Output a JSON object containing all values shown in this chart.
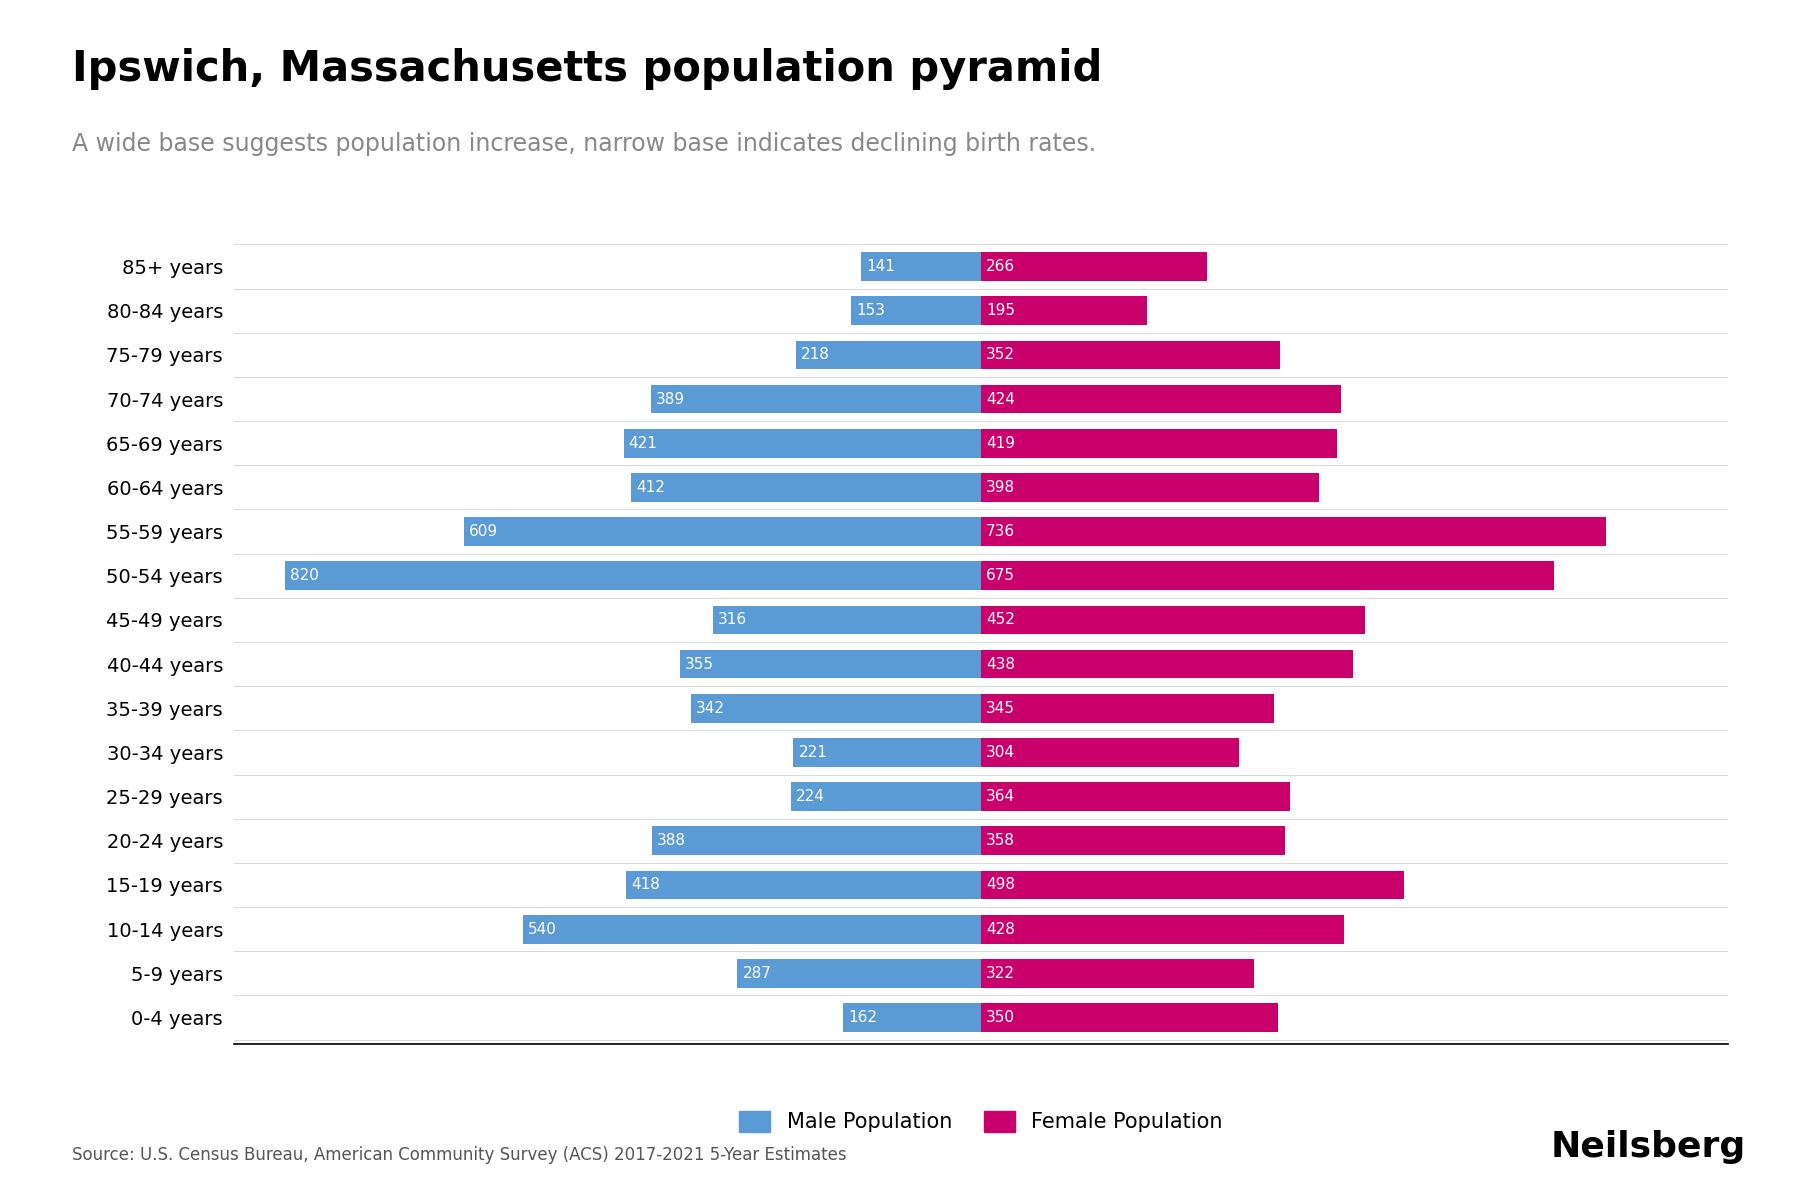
{
  "title": "Ipswich, Massachusetts population pyramid",
  "subtitle": "A wide base suggests population increase, narrow base indicates declining birth rates.",
  "source": "Source: U.S. Census Bureau, American Community Survey (ACS) 2017-2021 5-Year Estimates",
  "watermark": "Neilsberg",
  "age_groups": [
    "85+ years",
    "80-84 years",
    "75-79 years",
    "70-74 years",
    "65-69 years",
    "60-64 years",
    "55-59 years",
    "50-54 years",
    "45-49 years",
    "40-44 years",
    "35-39 years",
    "30-34 years",
    "25-29 years",
    "20-24 years",
    "15-19 years",
    "10-14 years",
    "5-9 years",
    "0-4 years"
  ],
  "male": [
    141,
    153,
    218,
    389,
    421,
    412,
    609,
    820,
    316,
    355,
    342,
    221,
    224,
    388,
    418,
    540,
    287,
    162
  ],
  "female": [
    266,
    195,
    352,
    424,
    419,
    398,
    736,
    675,
    452,
    438,
    345,
    304,
    364,
    358,
    498,
    428,
    322,
    350
  ],
  "male_color": "#5B9BD5",
  "female_color": "#C9006B",
  "background_color": "#FFFFFF",
  "title_fontsize": 30,
  "subtitle_fontsize": 17,
  "label_fontsize": 14,
  "bar_label_fontsize": 11,
  "legend_fontsize": 15,
  "source_fontsize": 12,
  "watermark_fontsize": 26,
  "xlim": 880
}
